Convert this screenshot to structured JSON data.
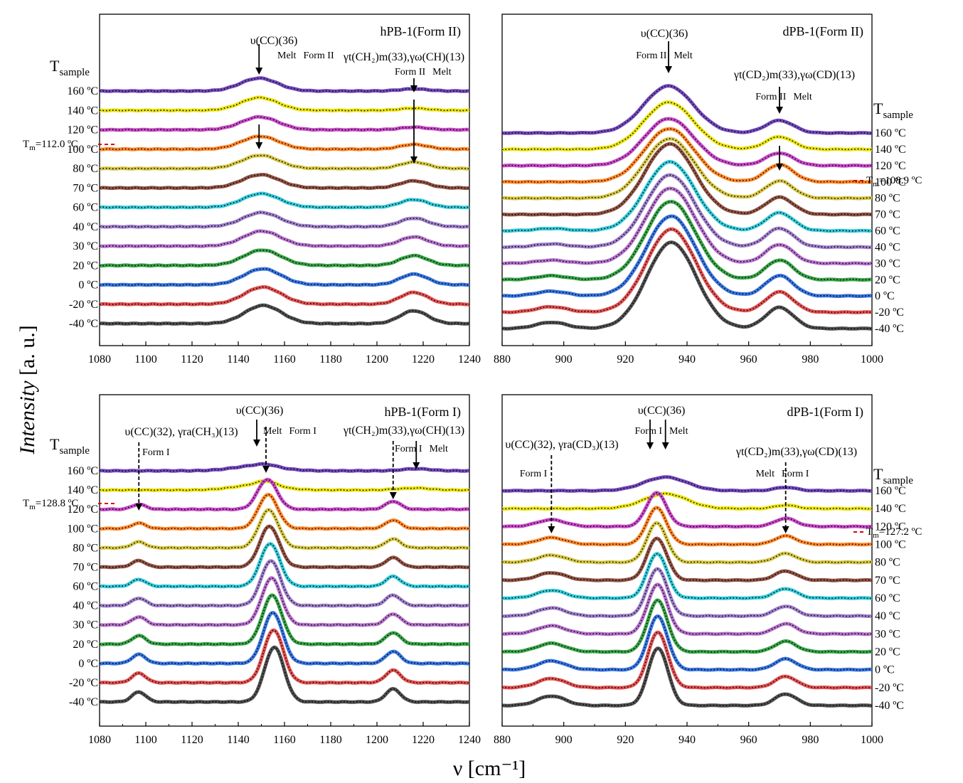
{
  "figure": {
    "ylabel": "Intensity",
    "ylabel_unit": "[a. u.]",
    "xlabel": "ν [cm⁻¹]"
  },
  "chart_data": [
    {
      "type": "line",
      "id": "hPB1-II",
      "title": "hPB-1(Form II)",
      "xlim": [
        1080,
        1240
      ],
      "xticks": [
        1080,
        1100,
        1120,
        1140,
        1160,
        1180,
        1200,
        1220,
        1240
      ],
      "tsample_label": "T",
      "tsample_sub": "sample",
      "tm_label": "T",
      "tm_sub": "m",
      "tm_value": "=112.0 ºC",
      "temps": [
        "160 ºC",
        "140 ºC",
        "120 ºC",
        "100 ºC",
        "80 ºC",
        "70 ºC",
        "60 ºC",
        "40 ºC",
        "30 ºC",
        "20 ºC",
        "0 ºC",
        "-20 ºC",
        "-40 ºC"
      ],
      "series_colors": [
        "#6a3fb8",
        "#e8e000",
        "#c640c6",
        "#ff7f1e",
        "#d2c23a",
        "#8a4a3a",
        "#29c6d6",
        "#9a78c8",
        "#b068c8",
        "#2e9e3e",
        "#2d6fe0",
        "#e04848",
        "#444444"
      ],
      "peaks": [
        {
          "center": 1149,
          "width": 8,
          "heights": [
            0.6,
            0.6,
            0.6,
            0.6,
            0.62,
            0.62,
            0.64,
            0.66,
            0.7,
            0.72,
            0.75,
            0.8,
            0.85
          ],
          "shift": 0.15
        },
        {
          "center": 1216,
          "width": 6,
          "heights": [
            0.1,
            0.1,
            0.12,
            0.22,
            0.3,
            0.33,
            0.36,
            0.4,
            0.43,
            0.46,
            0.5,
            0.55,
            0.6
          ],
          "shift": 0
        }
      ],
      "annotations": [
        {
          "lines": [
            "υ(CC)(36)"
          ],
          "x": 1149
        },
        {
          "lines": [
            "Melt",
            "Form II"
          ],
          "x": 1149
        },
        {
          "lines": [
            "γt(CH₂)m(33),γω(CH)(13)"
          ],
          "x": 1216
        },
        {
          "lines": [
            "Form II",
            "Melt"
          ],
          "x": 1216
        }
      ]
    },
    {
      "type": "line",
      "id": "dPB1-II",
      "title": "dPB-1(Form II)",
      "xlim": [
        880,
        1000
      ],
      "xticks": [
        880,
        900,
        920,
        940,
        960,
        980,
        1000
      ],
      "tsample_label": "T",
      "tsample_sub": "sample",
      "tm_label": "T",
      "tm_sub": "m",
      "tm_value": "=108.9 ºC",
      "temps": [
        "160 ºC",
        "140 ºC",
        "120 ºC",
        "100 ºC",
        "80 ºC",
        "70 ºC",
        "60 ºC",
        "40 ºC",
        "30 ºC",
        "20 ºC",
        "0 ºC",
        "-20 ºC",
        "-40 ºC"
      ],
      "series_colors": [
        "#6a3fb8",
        "#e8e000",
        "#c640c6",
        "#ff7f1e",
        "#d2c23a",
        "#8a4a3a",
        "#29c6d6",
        "#9a78c8",
        "#b068c8",
        "#2e9e3e",
        "#2d6fe0",
        "#e04848",
        "#444444"
      ],
      "peaks": [
        {
          "center": 934,
          "width": 8,
          "heights": [
            3.0,
            3.0,
            3.0,
            3.4,
            3.8,
            4.5,
            4.4,
            4.6,
            4.8,
            5.0,
            5.1,
            5.3,
            5.5
          ],
          "shift": 0.08
        },
        {
          "center": 970,
          "width": 4.5,
          "heights": [
            0.8,
            0.8,
            0.8,
            1.1,
            1.1,
            1.1,
            1.15,
            1.2,
            1.2,
            1.25,
            1.3,
            1.3,
            1.35
          ],
          "shift": 0
        },
        {
          "center": 896,
          "width": 5,
          "heights": [
            0,
            0,
            0,
            0,
            0,
            0,
            0.15,
            0.2,
            0.2,
            0.25,
            0.3,
            0.35,
            0.4
          ],
          "shift": 0
        }
      ],
      "annotations": [
        {
          "lines": [
            "υ(CC)(36)"
          ],
          "x": 934
        },
        {
          "lines": [
            "Form II",
            "Melt"
          ],
          "x": 934
        },
        {
          "lines": [
            "γt(CD₂)m(33),γω(CD)(13)"
          ],
          "x": 970
        },
        {
          "lines": [
            "Form II",
            "Melt"
          ],
          "x": 970
        }
      ]
    },
    {
      "type": "line",
      "id": "hPB1-I",
      "title": "hPB-1(Form I)",
      "xlim": [
        1080,
        1240
      ],
      "xticks": [
        1080,
        1100,
        1120,
        1140,
        1160,
        1180,
        1200,
        1220,
        1240
      ],
      "tsample_label": "T",
      "tsample_sub": "sample",
      "tm_label": "T",
      "tm_sub": "m",
      "tm_value": "=128.8 ºC",
      "temps": [
        "160 ºC",
        "140 ºC",
        "120 ºC",
        "100 ºC",
        "80 ºC",
        "70 ºC",
        "60 ºC",
        "40 ºC",
        "30 ºC",
        "20 ºC",
        "0 ºC",
        "-20 ºC",
        "-40 ºC"
      ],
      "series_colors": [
        "#6a3fb8",
        "#e8e000",
        "#c640c6",
        "#ff7f1e",
        "#d2c23a",
        "#8a4a3a",
        "#29c6d6",
        "#9a78c8",
        "#b068c8",
        "#2e9e3e",
        "#2d6fe0",
        "#e04848",
        "#444444"
      ],
      "peaks": [
        {
          "center": 1148,
          "width": 10,
          "heights": [
            0.5,
            0.5,
            0,
            0,
            0,
            0,
            0,
            0,
            0,
            0,
            0,
            0,
            0
          ],
          "shift": 0
        },
        {
          "center": 1152,
          "width": 4.2,
          "heights": [
            0.2,
            0.45,
            3.0,
            3.4,
            3.8,
            4.1,
            4.3,
            4.5,
            4.7,
            4.9,
            5.1,
            5.3,
            5.5
          ],
          "shift": 0.3
        },
        {
          "center": 1097,
          "width": 3,
          "heights": [
            0,
            0,
            0.5,
            0.55,
            0.6,
            0.65,
            0.7,
            0.75,
            0.8,
            0.85,
            0.9,
            0.95,
            1.0
          ],
          "shift": 0
        },
        {
          "center": 1207,
          "width": 3.2,
          "heights": [
            0,
            0.05,
            0.8,
            0.85,
            0.9,
            0.95,
            1.0,
            1.05,
            1.1,
            1.15,
            1.2,
            1.25,
            1.3
          ],
          "shift": 0
        },
        {
          "center": 1217,
          "width": 6,
          "heights": [
            0.2,
            0.2,
            0,
            0,
            0,
            0,
            0,
            0,
            0,
            0,
            0,
            0,
            0
          ],
          "shift": 0
        }
      ],
      "annotations": [
        {
          "lines": [
            "υ(CC)(32), γra(CH₃)(13)"
          ],
          "x": 1097
        },
        {
          "lines": [
            "Form I"
          ],
          "x": 1097
        },
        {
          "lines": [
            "υ(CC)(36)"
          ],
          "x": 1150
        },
        {
          "lines": [
            "Melt",
            "Form I"
          ],
          "x": 1150
        },
        {
          "lines": [
            "γt(CH₂)m(33),γω(CH)(13)"
          ],
          "x": 1212
        },
        {
          "lines": [
            "Form I",
            "Melt"
          ],
          "x": 1212
        }
      ]
    },
    {
      "type": "line",
      "id": "dPB1-I",
      "title": "dPB-1(Form I)",
      "xlim": [
        880,
        1000
      ],
      "xticks": [
        880,
        900,
        920,
        940,
        960,
        980,
        1000
      ],
      "tsample_label": "T",
      "tsample_sub": "sample",
      "tm_label": "T",
      "tm_sub": "m",
      "tm_value": "=127.2 ºC",
      "temps": [
        "160 ºC",
        "140 ºC",
        "120 ºC",
        "100 ºC",
        "80 ºC",
        "70 ºC",
        "60 ºC",
        "40 ºC",
        "30 ºC",
        "20 ºC",
        "0 ºC",
        "-20 ºC",
        "-40 ºC"
      ],
      "series_colors": [
        "#6a3fb8",
        "#e8e000",
        "#c640c6",
        "#ff7f1e",
        "#d2c23a",
        "#8a4a3a",
        "#29c6d6",
        "#9a78c8",
        "#b068c8",
        "#2e9e3e",
        "#2d6fe0",
        "#e04848",
        "#444444"
      ],
      "peaks": [
        {
          "center": 933,
          "width": 7,
          "heights": [
            2.0,
            2.2,
            0,
            0,
            0,
            0,
            0,
            0,
            0,
            0,
            0,
            0,
            0
          ],
          "shift": 0
        },
        {
          "center": 930,
          "width": 3.2,
          "heights": [
            0,
            0,
            5.0,
            5.4,
            5.8,
            6.2,
            6.6,
            7.0,
            7.3,
            7.6,
            7.9,
            8.2,
            8.5
          ],
          "shift": 0.05
        },
        {
          "center": 896,
          "width": 4.5,
          "heights": [
            0,
            0,
            1.0,
            1.0,
            1.05,
            1.1,
            1.15,
            1.2,
            1.2,
            1.25,
            1.3,
            1.35,
            1.4
          ],
          "shift": 0
        },
        {
          "center": 972,
          "width": 3.5,
          "heights": [
            0.5,
            0.5,
            1.2,
            1.25,
            1.3,
            1.35,
            1.4,
            1.45,
            1.5,
            1.55,
            1.6,
            1.65,
            1.7
          ],
          "shift": 0
        }
      ],
      "annotations": [
        {
          "lines": [
            "υ(CC)(36)"
          ],
          "x": 932
        },
        {
          "lines": [
            "Form I",
            "Melt"
          ],
          "x": 932
        },
        {
          "lines": [
            "υ(CC)(32), γra(CD₃)(13)"
          ],
          "x": 896
        },
        {
          "lines": [
            "Form I"
          ],
          "x": 896
        },
        {
          "lines": [
            "γt(CD₂)m(33),γω(CD)(13)"
          ],
          "x": 972
        },
        {
          "lines": [
            "Melt",
            "Form I"
          ],
          "x": 972
        }
      ]
    }
  ]
}
